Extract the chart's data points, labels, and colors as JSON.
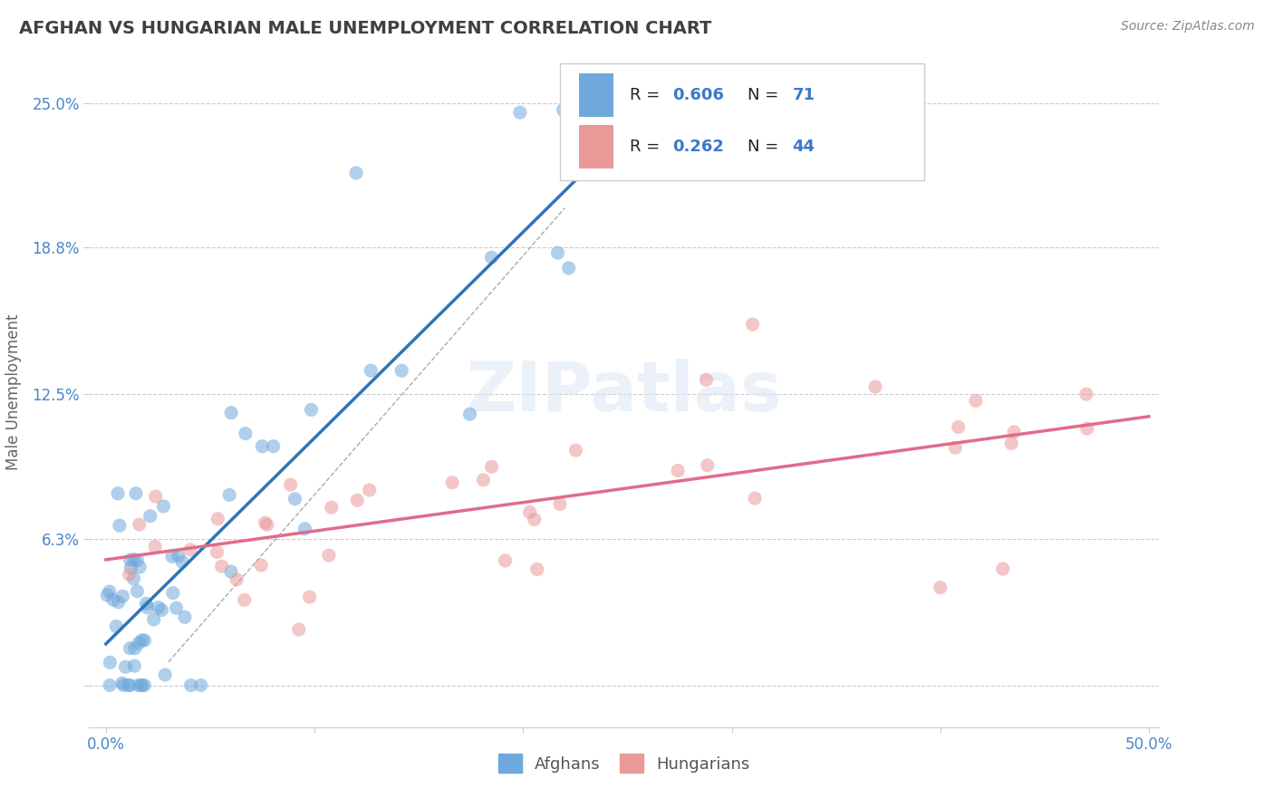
{
  "title": "AFGHAN VS HUNGARIAN MALE UNEMPLOYMENT CORRELATION CHART",
  "source_text": "Source: ZipAtlas.com",
  "ylabel": "Male Unemployment",
  "afghan_color": "#6fa8dc",
  "hungarian_color": "#ea9999",
  "afghan_line_color": "#2e75b6",
  "hungarian_line_color": "#e06c8a",
  "afghan_R": 0.606,
  "afghan_N": 71,
  "hungarian_R": 0.262,
  "hungarian_N": 44,
  "watermark": "ZIPatlas",
  "background_color": "#ffffff",
  "grid_color": "#cccccc",
  "title_color": "#404040",
  "axis_label_color": "#4a86c8",
  "legend_color": "#3a78c9",
  "source_color": "#888888"
}
